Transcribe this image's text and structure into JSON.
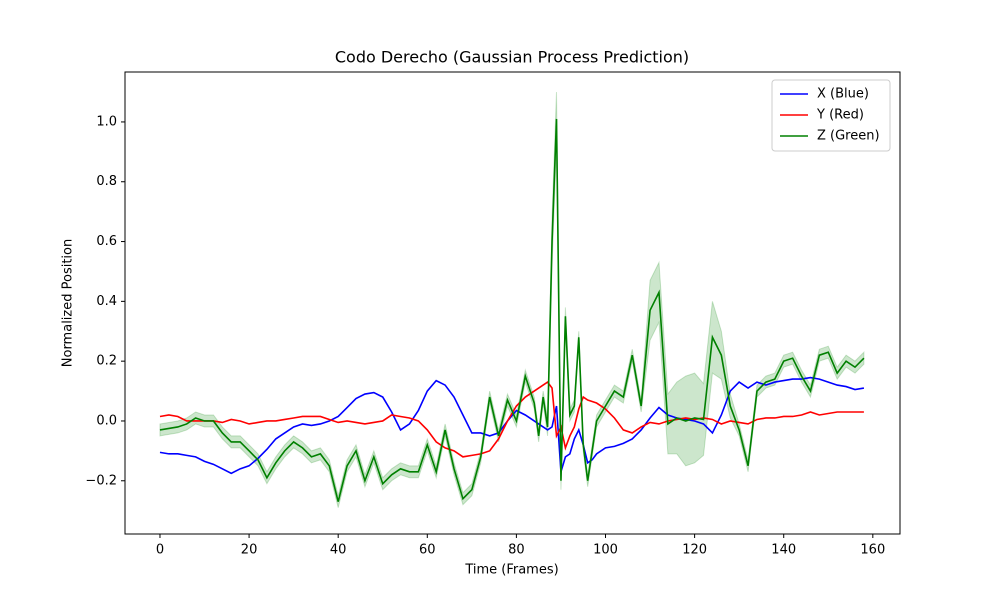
{
  "chart_data": {
    "type": "line",
    "title": "Codo Derecho (Gaussian Process Prediction)",
    "x_label": "Time (Frames)",
    "y_label": "Normalized Position",
    "x": [
      0,
      2,
      4,
      6,
      8,
      10,
      12,
      14,
      16,
      18,
      20,
      22,
      24,
      26,
      28,
      30,
      32,
      34,
      36,
      38,
      40,
      42,
      44,
      46,
      48,
      50,
      52,
      54,
      56,
      58,
      60,
      62,
      64,
      66,
      68,
      70,
      72,
      74,
      76,
      78,
      80,
      82,
      84,
      85,
      86,
      87,
      88,
      89,
      90,
      91,
      92,
      93,
      94,
      95,
      96,
      97,
      98,
      100,
      102,
      104,
      106,
      108,
      110,
      112,
      114,
      116,
      118,
      120,
      122,
      124,
      126,
      128,
      130,
      132,
      134,
      136,
      138,
      140,
      142,
      144,
      146,
      148,
      150,
      152,
      154,
      156,
      158
    ],
    "series": [
      {
        "name": "X (Blue)",
        "color": "#0000ff",
        "values": [
          -0.105,
          -0.11,
          -0.11,
          -0.115,
          -0.12,
          -0.135,
          -0.145,
          -0.16,
          -0.175,
          -0.16,
          -0.15,
          -0.125,
          -0.095,
          -0.06,
          -0.04,
          -0.02,
          -0.01,
          -0.015,
          -0.01,
          0.0,
          0.015,
          0.045,
          0.075,
          0.09,
          0.095,
          0.08,
          0.03,
          -0.03,
          -0.01,
          0.035,
          0.1,
          0.135,
          0.12,
          0.08,
          0.02,
          -0.04,
          -0.04,
          -0.05,
          -0.04,
          0.0,
          0.035,
          0.02,
          0.0,
          -0.01,
          -0.02,
          -0.03,
          -0.02,
          0.05,
          -0.17,
          -0.12,
          -0.11,
          -0.06,
          -0.03,
          -0.08,
          -0.14,
          -0.13,
          -0.11,
          -0.09,
          -0.085,
          -0.075,
          -0.06,
          -0.03,
          0.01,
          0.045,
          0.02,
          0.01,
          0.005,
          0.0,
          -0.01,
          -0.04,
          0.02,
          0.1,
          0.13,
          0.11,
          0.13,
          0.12,
          0.13,
          0.135,
          0.14,
          0.14,
          0.145,
          0.14,
          0.13,
          0.12,
          0.115,
          0.105,
          0.11
        ]
      },
      {
        "name": "Y (Red)",
        "color": "#ff0000",
        "values": [
          0.015,
          0.02,
          0.015,
          0.0,
          0.0,
          0.0,
          0.0,
          -0.005,
          0.005,
          0.0,
          -0.01,
          -0.005,
          0.0,
          0.0,
          0.005,
          0.01,
          0.015,
          0.015,
          0.015,
          0.005,
          -0.005,
          0.0,
          -0.005,
          -0.01,
          -0.005,
          0.0,
          0.02,
          0.015,
          0.01,
          0.0,
          -0.03,
          -0.07,
          -0.09,
          -0.1,
          -0.12,
          -0.115,
          -0.11,
          -0.1,
          -0.06,
          0.0,
          0.05,
          0.08,
          0.1,
          0.11,
          0.12,
          0.13,
          0.11,
          -0.05,
          -0.02,
          -0.09,
          -0.05,
          -0.02,
          0.04,
          0.08,
          0.07,
          0.065,
          0.06,
          0.04,
          0.01,
          -0.03,
          -0.04,
          -0.02,
          -0.005,
          -0.01,
          0.0,
          0.005,
          0.01,
          0.005,
          0.01,
          0.005,
          -0.01,
          0.0,
          -0.005,
          -0.01,
          0.005,
          0.01,
          0.01,
          0.015,
          0.015,
          0.02,
          0.03,
          0.02,
          0.025,
          0.03,
          0.03,
          0.03,
          0.03
        ]
      },
      {
        "name": "Z (Green)",
        "color": "#008000",
        "values": [
          -0.03,
          -0.025,
          -0.02,
          -0.01,
          0.01,
          0.0,
          0.0,
          -0.04,
          -0.07,
          -0.07,
          -0.1,
          -0.13,
          -0.19,
          -0.14,
          -0.1,
          -0.07,
          -0.09,
          -0.12,
          -0.11,
          -0.15,
          -0.27,
          -0.15,
          -0.1,
          -0.2,
          -0.12,
          -0.21,
          -0.18,
          -0.16,
          -0.17,
          -0.17,
          -0.08,
          -0.17,
          -0.03,
          -0.16,
          -0.26,
          -0.23,
          -0.12,
          0.08,
          -0.05,
          0.07,
          0.0,
          0.15,
          0.06,
          -0.05,
          0.08,
          -0.02,
          0.6,
          1.01,
          -0.2,
          0.35,
          0.02,
          0.05,
          0.28,
          -0.08,
          -0.2,
          -0.1,
          0.0,
          0.05,
          0.1,
          0.08,
          0.22,
          0.05,
          0.37,
          0.43,
          -0.01,
          0.01,
          0.0,
          0.01,
          0.005,
          0.28,
          0.22,
          0.05,
          -0.03,
          -0.15,
          0.1,
          0.13,
          0.14,
          0.2,
          0.21,
          0.15,
          0.1,
          0.22,
          0.23,
          0.16,
          0.2,
          0.18,
          0.21
        ],
        "error": [
          0.02,
          0.02,
          0.02,
          0.02,
          0.02,
          0.02,
          0.02,
          0.02,
          0.02,
          0.02,
          0.02,
          0.02,
          0.02,
          0.02,
          0.02,
          0.02,
          0.02,
          0.02,
          0.02,
          0.02,
          0.02,
          0.02,
          0.02,
          0.02,
          0.02,
          0.02,
          0.02,
          0.02,
          0.02,
          0.02,
          0.02,
          0.02,
          0.02,
          0.02,
          0.02,
          0.02,
          0.02,
          0.02,
          0.02,
          0.02,
          0.02,
          0.02,
          0.02,
          0.02,
          0.02,
          0.03,
          0.08,
          0.09,
          0.03,
          0.03,
          0.02,
          0.02,
          0.02,
          0.02,
          0.02,
          0.02,
          0.02,
          0.02,
          0.02,
          0.02,
          0.02,
          0.02,
          0.1,
          0.1,
          0.1,
          0.12,
          0.15,
          0.15,
          0.12,
          0.12,
          0.08,
          0.04,
          0.02,
          0.02,
          0.02,
          0.02,
          0.02,
          0.02,
          0.02,
          0.02,
          0.02,
          0.02,
          0.02,
          0.02,
          0.02,
          0.02,
          0.02
        ]
      }
    ],
    "xlim": [
      -7.85,
      166.1
    ],
    "ylim": [
      -0.378,
      1.167
    ],
    "xticks": [
      0,
      20,
      40,
      60,
      80,
      100,
      120,
      140,
      160
    ],
    "yticks": [
      {
        "value": -0.2,
        "label": "−0.2"
      },
      {
        "value": 0,
        "label": "0.0"
      },
      0.2,
      0.4,
      0.6,
      0.8,
      {
        "value": 1,
        "label": "1.0"
      }
    ],
    "grid": false,
    "legend": "upper right"
  }
}
